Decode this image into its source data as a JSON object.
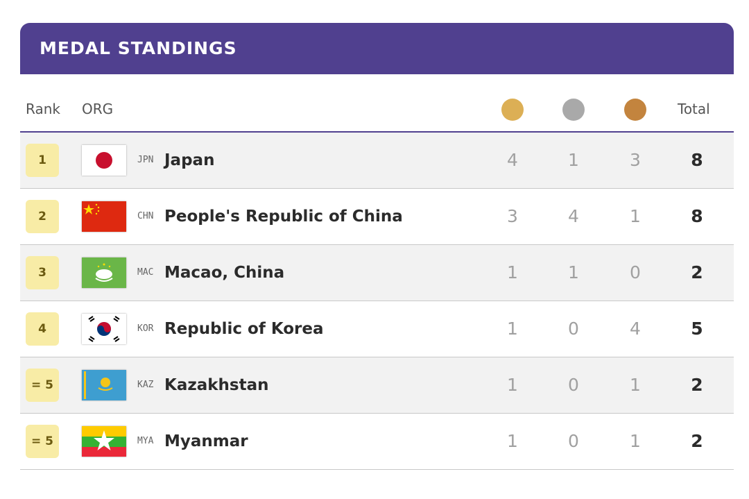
{
  "header": {
    "title": "MEDAL STANDINGS"
  },
  "columns": {
    "rank": "Rank",
    "org": "ORG",
    "total": "Total"
  },
  "rows": [
    {
      "rank": 1,
      "code": "JPN",
      "name": "Japan",
      "gold": 4,
      "silver": 1,
      "bronze": 3,
      "total": 8
    },
    {
      "rank": 2,
      "code": "CHN",
      "name": "People's Republic of China",
      "gold": 3,
      "silver": 4,
      "bronze": 1,
      "total": 8
    },
    {
      "rank": 3,
      "code": "MAC",
      "name": "Macao, China",
      "gold": 1,
      "silver": 1,
      "bronze": 0,
      "total": 2
    },
    {
      "rank": 4,
      "code": "KOR",
      "name": "Republic of Korea",
      "gold": 1,
      "silver": 0,
      "bronze": 4,
      "total": 5
    },
    {
      "rank": "= 5",
      "code": "KAZ",
      "name": "Kazakhstan",
      "gold": 1,
      "silver": 0,
      "bronze": 1,
      "total": 2
    },
    {
      "rank": "= 5",
      "code": "MYA",
      "name": "Myanmar",
      "gold": 1,
      "silver": 0,
      "bronze": 1,
      "total": 2
    }
  ]
}
